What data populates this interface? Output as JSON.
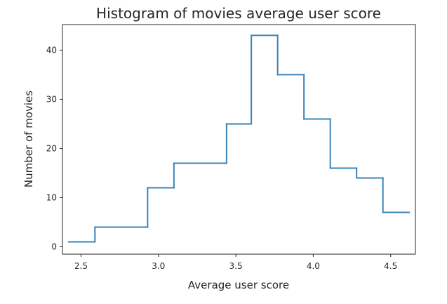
{
  "chart_data": {
    "type": "line",
    "style": "step histogram",
    "title": "Histogram of movies average user score",
    "xlabel": "Average user score",
    "ylabel": "Number of movies",
    "xlim": [
      2.38,
      4.66
    ],
    "ylim": [
      -1.5,
      45.2
    ],
    "xticks": [
      2.5,
      3.0,
      3.5,
      4.0,
      4.5
    ],
    "xtick_labels": [
      "2.5",
      "3.0",
      "3.5",
      "4.0",
      "4.5"
    ],
    "yticks": [
      0,
      10,
      20,
      30,
      40
    ],
    "ytick_labels": [
      "0",
      "10",
      "20",
      "30",
      "40"
    ],
    "grid": false,
    "legend": "none",
    "line_color": "#3a84b8",
    "bins": [
      {
        "x0": 2.42,
        "x1": 2.59,
        "count": 1
      },
      {
        "x0": 2.59,
        "x1": 2.93,
        "count": 4
      },
      {
        "x0": 2.93,
        "x1": 3.1,
        "count": 12
      },
      {
        "x0": 3.1,
        "x1": 3.44,
        "count": 17
      },
      {
        "x0": 3.44,
        "x1": 3.6,
        "count": 25
      },
      {
        "x0": 3.6,
        "x1": 3.77,
        "count": 43
      },
      {
        "x0": 3.77,
        "x1": 3.94,
        "count": 35
      },
      {
        "x0": 3.94,
        "x1": 4.11,
        "count": 26
      },
      {
        "x0": 4.11,
        "x1": 4.28,
        "count": 16
      },
      {
        "x0": 4.28,
        "x1": 4.45,
        "count": 14
      },
      {
        "x0": 4.45,
        "x1": 4.62,
        "count": 7
      }
    ]
  }
}
